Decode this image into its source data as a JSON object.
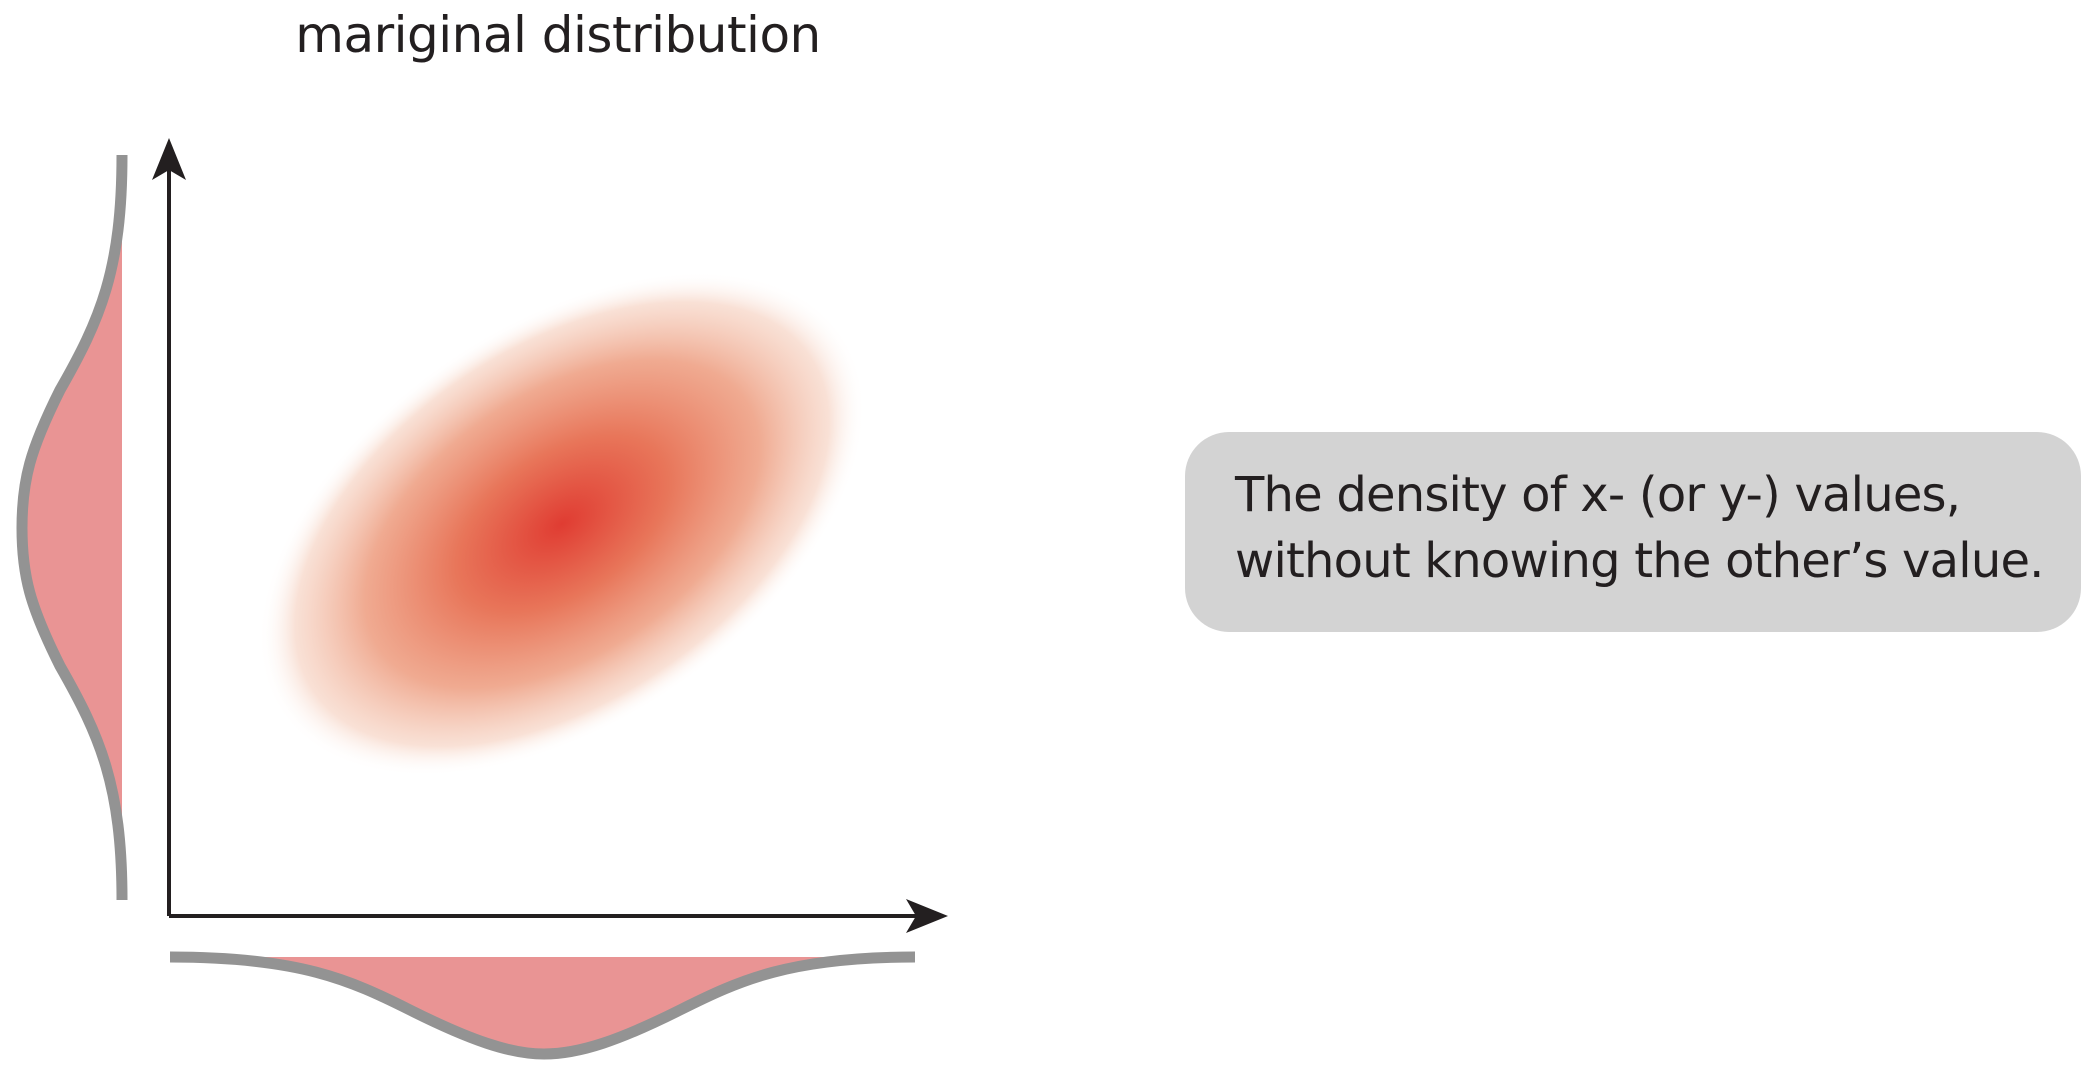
{
  "title": "mariginal distribution",
  "callout": {
    "line1": "The density of x- (or y-) values,",
    "line2": "without knowing the other’s value."
  },
  "colors": {
    "marginal_fill": "#e99494",
    "marginal_outline": "#939393",
    "density_center": "#e03c32",
    "density_mid": "#ea8a6c",
    "axis": "#231f20",
    "callout_bg": "#d3d3d3",
    "text": "#231f20"
  },
  "icons": {
    "x_axis_arrow": "arrowhead-right-icon",
    "y_axis_arrow": "arrowhead-up-icon"
  }
}
